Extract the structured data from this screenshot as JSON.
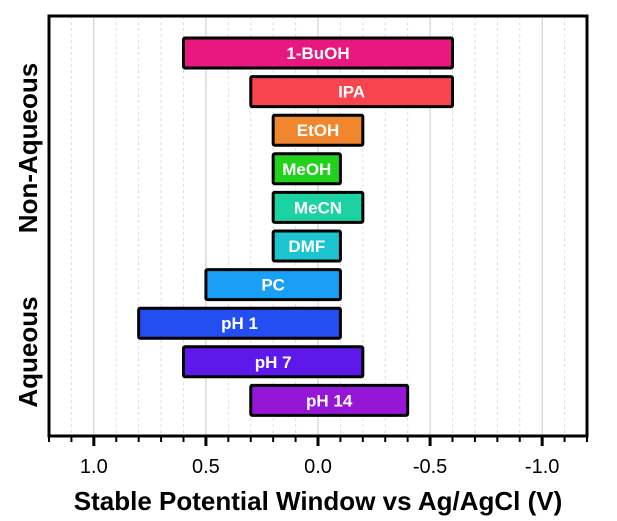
{
  "chart_data": {
    "type": "bar",
    "orientation": "horizontal-floating",
    "title": "",
    "xlabel": "Stable Potential Window vs Ag/AgCl (V)",
    "ylabel": "",
    "x_reversed": true,
    "xlim": [
      1.2,
      -1.2
    ],
    "xticks": [
      "1.0",
      "0.5",
      "0.0",
      "-0.5",
      "-1.0"
    ],
    "xtick_values": [
      1.0,
      0.5,
      0.0,
      -0.5,
      -1.0
    ],
    "grid": "vertical dashed minor",
    "group_labels": [
      {
        "name": "Non-Aqueous",
        "members": [
          "1-BuOH",
          "IPA",
          "EtOH",
          "MeOH",
          "MeCN",
          "DMF",
          "PC"
        ]
      },
      {
        "name": "Aqueous",
        "members": [
          "pH 1",
          "pH 7",
          "pH 14"
        ]
      }
    ],
    "categories": [
      "1-BuOH",
      "IPA",
      "EtOH",
      "MeOH",
      "MeCN",
      "DMF",
      "PC",
      "pH 1",
      "pH 7",
      "pH 14"
    ],
    "bars": [
      {
        "label": "1-BuOH",
        "start": 0.6,
        "end": -0.6,
        "color": "#e8187e"
      },
      {
        "label": "IPA",
        "start": 0.3,
        "end": -0.6,
        "color": "#f8444e"
      },
      {
        "label": "EtOH",
        "start": 0.2,
        "end": -0.2,
        "color": "#f0862d"
      },
      {
        "label": "MeOH",
        "start": 0.2,
        "end": -0.1,
        "color": "#22d11b"
      },
      {
        "label": "MeCN",
        "start": 0.2,
        "end": -0.2,
        "color": "#1dd2a2"
      },
      {
        "label": "DMF",
        "start": 0.2,
        "end": -0.1,
        "color": "#1bc4cf"
      },
      {
        "label": "PC",
        "start": 0.5,
        "end": -0.1,
        "color": "#199ff5"
      },
      {
        "label": "pH 1",
        "start": 0.8,
        "end": -0.1,
        "color": "#234ef2"
      },
      {
        "label": "pH 7",
        "start": 0.6,
        "end": -0.2,
        "color": "#5c19ea"
      },
      {
        "label": "pH 14",
        "start": 0.3,
        "end": -0.4,
        "color": "#9616d8"
      }
    ]
  }
}
